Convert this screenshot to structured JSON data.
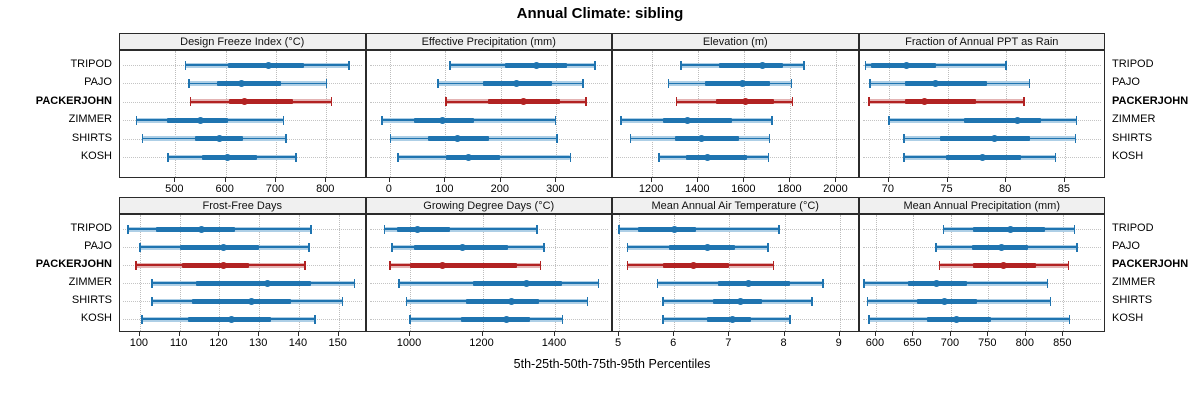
{
  "title": "Annual Climate: sibling",
  "xlabel": "5th-25th-50th-75th-95th Percentiles",
  "sites": [
    "TRIPOD",
    "PAJO",
    "PACKERJOHN",
    "ZIMMER",
    "SHIRTS",
    "KOSH"
  ],
  "highlight_site": "PACKERJOHN",
  "colors": {
    "series_normal": "#1f74b0",
    "series_normal_light": "#aecfe6",
    "series_highlight": "#b22222",
    "series_highlight_light": "#e4b3b3",
    "strip_background": "#f0f0f0",
    "panel_border": "#2b2b2b",
    "gridline": "#bdbdbd"
  },
  "chart_data": {
    "type": "dotplot-range",
    "title": "Annual Climate: sibling",
    "xlabel": "5th-25th-50th-75th-95th Percentiles",
    "percentiles": [
      5,
      25,
      50,
      75,
      95
    ],
    "legend_position": "none",
    "grid": "dotted vertical at ticks, dotted horizontal per site row",
    "sites_top_to_bottom": [
      "TRIPOD",
      "PAJO",
      "PACKERJOHN",
      "ZIMMER",
      "SHIRTS",
      "KOSH"
    ],
    "panels": [
      {
        "title": "Design Freeze Index (°C)",
        "row": 0,
        "col": 0,
        "axis_min": 390,
        "axis_max": 880,
        "ticks": [
          500,
          600,
          700,
          800
        ],
        "series": [
          {
            "name": "TRIPOD",
            "values": [
              520,
              605,
              685,
              755,
              845
            ]
          },
          {
            "name": "PAJO",
            "values": [
              527,
              583,
              632,
              710,
              800
            ]
          },
          {
            "name": "PACKERJOHN",
            "values": [
              530,
              607,
              637,
              733,
              810
            ]
          },
          {
            "name": "ZIMMER",
            "values": [
              423,
              484,
              550,
              605,
              715
            ]
          },
          {
            "name": "SHIRTS",
            "values": [
              435,
              540,
              588,
              635,
              720
            ]
          },
          {
            "name": "KOSH",
            "values": [
              485,
              553,
              603,
              662,
              740
            ]
          }
        ]
      },
      {
        "title": "Effective Precipitation (mm)",
        "row": 0,
        "col": 1,
        "axis_min": -42,
        "axis_max": 402,
        "ticks": [
          0,
          100,
          200,
          300
        ],
        "series": [
          {
            "name": "TRIPOD",
            "values": [
              108,
              208,
              265,
              320,
              370
            ]
          },
          {
            "name": "PAJO",
            "values": [
              87,
              168,
              228,
              293,
              348
            ]
          },
          {
            "name": "PACKERJOHN",
            "values": [
              101,
              176,
              241,
              306,
              353
            ]
          },
          {
            "name": "ZIMMER",
            "values": [
              -14,
              43,
              94,
              151,
              298
            ]
          },
          {
            "name": "SHIRTS",
            "values": [
              1,
              69,
              122,
              178,
              301
            ]
          },
          {
            "name": "KOSH",
            "values": [
              15,
              101,
              142,
              198,
              325
            ]
          }
        ]
      },
      {
        "title": "Elevation (m)",
        "row": 0,
        "col": 2,
        "axis_min": 1030,
        "axis_max": 2100,
        "ticks": [
          1200,
          1400,
          1600,
          1800,
          2000
        ],
        "series": [
          {
            "name": "TRIPOD",
            "values": [
              1325,
              1490,
              1680,
              1770,
              1860
            ]
          },
          {
            "name": "PAJO",
            "values": [
              1270,
              1430,
              1590,
              1710,
              1805
            ]
          },
          {
            "name": "PACKERJOHN",
            "values": [
              1305,
              1475,
              1605,
              1730,
              1810
            ]
          },
          {
            "name": "ZIMMER",
            "values": [
              1065,
              1245,
              1355,
              1545,
              1720
            ]
          },
          {
            "name": "SHIRTS",
            "values": [
              1105,
              1300,
              1415,
              1575,
              1710
            ]
          },
          {
            "name": "KOSH",
            "values": [
              1230,
              1345,
              1440,
              1610,
              1705
            ]
          }
        ]
      },
      {
        "title": "Fraction of Annual PPT as Rain",
        "row": 0,
        "col": 3,
        "axis_min": 67.5,
        "axis_max": 88.5,
        "ticks": [
          70,
          75,
          80,
          85
        ],
        "series": [
          {
            "name": "TRIPOD",
            "values": [
              68,
              68.5,
              71.5,
              74,
              80
            ]
          },
          {
            "name": "PAJO",
            "values": [
              68.4,
              71.4,
              74,
              78.4,
              82
            ]
          },
          {
            "name": "PACKERJOHN",
            "values": [
              68.3,
              71.4,
              73,
              77.4,
              81.5
            ]
          },
          {
            "name": "ZIMMER",
            "values": [
              70,
              76.4,
              81,
              83,
              86
            ]
          },
          {
            "name": "SHIRTS",
            "values": [
              71.3,
              74.4,
              79,
              82,
              85.9
            ]
          },
          {
            "name": "KOSH",
            "values": [
              71.3,
              74.9,
              78,
              81.3,
              84.2
            ]
          }
        ]
      },
      {
        "title": "Frost-Free Days",
        "row": 1,
        "col": 0,
        "axis_min": 95,
        "axis_max": 157,
        "ticks": [
          100,
          110,
          120,
          130,
          140,
          150
        ],
        "series": [
          {
            "name": "TRIPOD",
            "values": [
              97,
              104,
              115.5,
              124,
              143
            ]
          },
          {
            "name": "PAJO",
            "values": [
              100,
              110,
              121,
              130,
              142.5
            ]
          },
          {
            "name": "PACKERJOHN",
            "values": [
              99,
              110.5,
              121,
              127.5,
              141.5
            ]
          },
          {
            "name": "ZIMMER",
            "values": [
              103,
              114,
              132,
              143,
              154
            ]
          },
          {
            "name": "SHIRTS",
            "values": [
              103,
              113,
              128,
              138,
              151
            ]
          },
          {
            "name": "KOSH",
            "values": [
              100.5,
              112,
              123,
              133,
              144
            ]
          }
        ]
      },
      {
        "title": "Growing Degree Days (°C)",
        "row": 1,
        "col": 1,
        "axis_min": 880,
        "axis_max": 1560,
        "ticks": [
          1000,
          1200,
          1400
        ],
        "series": [
          {
            "name": "TRIPOD",
            "values": [
              930,
              965,
              1020,
              1110,
              1350
            ]
          },
          {
            "name": "PAJO",
            "values": [
              950,
              1010,
              1145,
              1270,
              1370
            ]
          },
          {
            "name": "PACKERJOHN",
            "values": [
              945,
              1000,
              1090,
              1295,
              1360
            ]
          },
          {
            "name": "ZIMMER",
            "values": [
              970,
              1175,
              1320,
              1420,
              1520
            ]
          },
          {
            "name": "SHIRTS",
            "values": [
              990,
              1155,
              1280,
              1355,
              1490
            ]
          },
          {
            "name": "KOSH",
            "values": [
              1000,
              1140,
              1265,
              1330,
              1420
            ]
          }
        ]
      },
      {
        "title": "Mean Annual Air Temperature (°C)",
        "row": 1,
        "col": 2,
        "axis_min": 4.89,
        "axis_max": 9.36,
        "ticks": [
          5,
          6,
          7,
          8,
          9
        ],
        "series": [
          {
            "name": "TRIPOD",
            "values": [
              5.0,
              5.35,
              6.0,
              6.4,
              7.9
            ]
          },
          {
            "name": "PAJO",
            "values": [
              5.15,
              5.9,
              6.6,
              7.1,
              7.7
            ]
          },
          {
            "name": "PACKERJOHN",
            "values": [
              5.15,
              5.8,
              6.35,
              7.0,
              7.8
            ]
          },
          {
            "name": "ZIMMER",
            "values": [
              5.7,
              6.8,
              7.35,
              8.1,
              8.7
            ]
          },
          {
            "name": "SHIRTS",
            "values": [
              5.8,
              6.7,
              7.2,
              7.6,
              8.5
            ]
          },
          {
            "name": "KOSH",
            "values": [
              5.8,
              6.6,
              7.05,
              7.4,
              8.1
            ]
          }
        ]
      },
      {
        "title": "Mean Annual Precipitation (mm)",
        "row": 1,
        "col": 3,
        "axis_min": 578,
        "axis_max": 907,
        "ticks": [
          600,
          650,
          700,
          750,
          800,
          850
        ],
        "series": [
          {
            "name": "TRIPOD",
            "values": [
              690,
              730,
              780,
              825,
              865
            ]
          },
          {
            "name": "PAJO",
            "values": [
              680,
              728,
              768,
              803,
              868
            ]
          },
          {
            "name": "PACKERJOHN",
            "values": [
              685,
              730,
              770,
              814,
              857
            ]
          },
          {
            "name": "ZIMMER",
            "values": [
              584,
              643,
              681,
              721,
              829
            ]
          },
          {
            "name": "SHIRTS",
            "values": [
              589,
              655,
              692,
              735,
              833
            ]
          },
          {
            "name": "KOSH",
            "values": [
              591,
              668,
              707,
              754,
              858
            ]
          }
        ]
      }
    ]
  }
}
